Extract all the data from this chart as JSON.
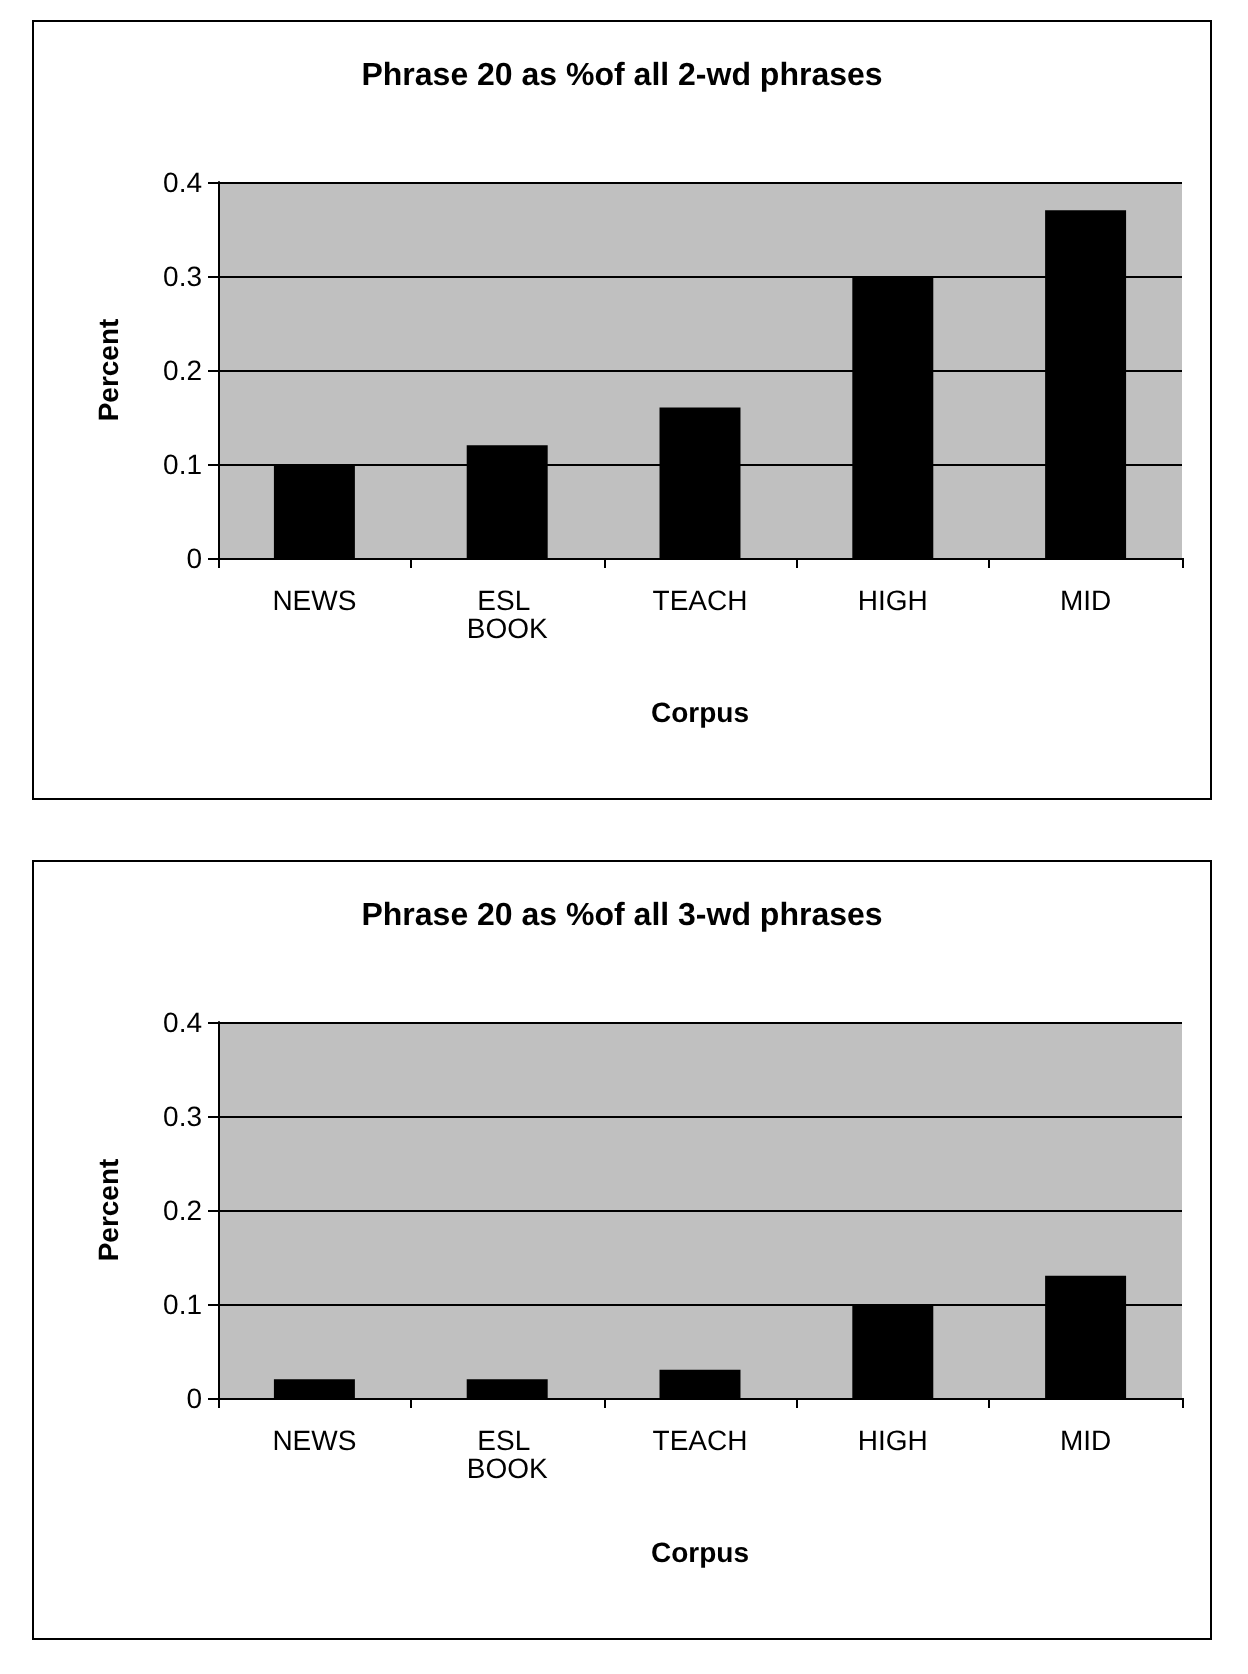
{
  "chart_data": [
    {
      "type": "bar",
      "title": "Phrase 20 as %of all 2-wd phrases",
      "xlabel": "Corpus",
      "ylabel": "Percent",
      "categories": [
        "NEWS",
        "ESL BOOK",
        "TEACH",
        "HIGH",
        "MID"
      ],
      "values": [
        0.1,
        0.12,
        0.16,
        0.3,
        0.37
      ],
      "color": "#000000",
      "ylim": [
        0,
        0.4
      ],
      "yticks": [
        0,
        0.1,
        0.2,
        0.3,
        0.4
      ],
      "grid": "y"
    },
    {
      "type": "bar",
      "title": "Phrase 20 as %of all 3-wd phrases",
      "xlabel": "Corpus",
      "ylabel": "Percent",
      "categories": [
        "NEWS",
        "ESL BOOK",
        "TEACH",
        "HIGH",
        "MID"
      ],
      "values": [
        0.02,
        0.02,
        0.03,
        0.1,
        0.13
      ],
      "color": "#000000",
      "ylim": [
        0,
        0.4
      ],
      "yticks": [
        0,
        0.1,
        0.2,
        0.3,
        0.4
      ],
      "grid": "y"
    }
  ]
}
